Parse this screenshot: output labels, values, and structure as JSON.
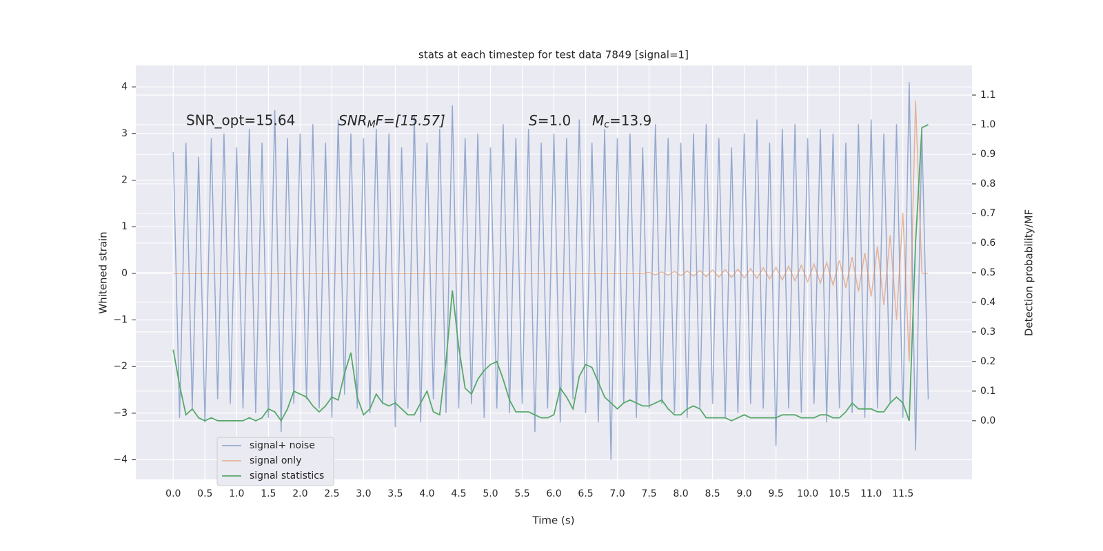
{
  "chart_data": {
    "type": "line",
    "title": "stats at each timestep for test data 7849 [signal=1]",
    "x_label": "Time (s)",
    "y_label": "Whitened strain",
    "y2_label": "Detection probability/MF",
    "annotations": {
      "snr_opt": "SNR_opt=15.64",
      "snr_mf": [
        "SNR",
        "M",
        "F=[15.57]"
      ],
      "s": [
        "S",
        "=1.0"
      ],
      "mc": [
        "M",
        "c",
        "=13.9"
      ]
    },
    "xlim": [
      -0.59,
      12.59
    ],
    "ylim": [
      -4.42,
      4.46
    ],
    "y2lim": [
      -0.198,
      1.2
    ],
    "xticks": [
      {
        "value": 0,
        "label": "0.0"
      },
      0.5,
      {
        "value": 1,
        "label": "1.0"
      },
      1.5,
      {
        "value": 2,
        "label": "2.0"
      },
      2.5,
      {
        "value": 3,
        "label": "3.0"
      },
      3.5,
      {
        "value": 4,
        "label": "4.0"
      },
      4.5,
      {
        "value": 5,
        "label": "5.0"
      },
      5.5,
      {
        "value": 6,
        "label": "6.0"
      },
      6.5,
      {
        "value": 7,
        "label": "7.0"
      },
      7.5,
      {
        "value": 8,
        "label": "8.0"
      },
      8.5,
      {
        "value": 9,
        "label": "9.0"
      },
      9.5,
      {
        "value": 10,
        "label": "10.0"
      },
      10.5,
      {
        "value": 11,
        "label": "11.0"
      },
      11.5
    ],
    "yticks": [
      {
        "value": -4,
        "label": "−4"
      },
      {
        "value": -3,
        "label": "−3"
      },
      {
        "value": -2,
        "label": "−2"
      },
      {
        "value": -1,
        "label": "−1"
      },
      0,
      1,
      2,
      3,
      4
    ],
    "y2ticks": [
      {
        "value": 0,
        "label": "0.0"
      },
      0.1,
      0.2,
      0.3,
      0.4,
      0.5,
      0.6,
      0.7,
      0.8,
      0.9,
      {
        "value": 1,
        "label": "1.0"
      },
      1.1
    ],
    "grid": true,
    "legend": "lower left",
    "x": [
      0,
      0.1,
      0.2,
      0.3,
      0.4,
      0.5,
      0.6,
      0.7,
      0.8,
      0.9,
      1,
      1.1,
      1.2,
      1.3,
      1.4,
      1.5,
      1.6,
      1.7,
      1.8,
      1.9,
      2,
      2.1,
      2.2,
      2.3,
      2.4,
      2.5,
      2.6,
      2.7,
      2.8,
      2.9,
      3,
      3.1,
      3.2,
      3.3,
      3.4,
      3.5,
      3.6,
      3.7,
      3.8,
      3.9,
      4,
      4.1,
      4.2,
      4.3,
      4.4,
      4.5,
      4.6,
      4.7,
      4.8,
      4.9,
      5,
      5.1,
      5.2,
      5.3,
      5.4,
      5.5,
      5.6,
      5.7,
      5.8,
      5.9,
      6,
      6.1,
      6.2,
      6.3,
      6.4,
      6.5,
      6.6,
      6.7,
      6.8,
      6.9,
      7,
      7.1,
      7.2,
      7.3,
      7.4,
      7.5,
      7.6,
      7.7,
      7.8,
      7.9,
      8,
      8.1,
      8.2,
      8.3,
      8.4,
      8.5,
      8.6,
      8.7,
      8.8,
      8.9,
      9,
      9.1,
      9.2,
      9.3,
      9.4,
      9.5,
      9.6,
      9.7,
      9.8,
      9.9,
      10,
      10.1,
      10.2,
      10.3,
      10.4,
      10.5,
      10.6,
      10.7,
      10.8,
      10.9,
      11,
      11.1,
      11.2,
      11.3,
      11.4,
      11.5,
      11.6,
      11.7,
      11.8,
      11.9
    ],
    "series": [
      {
        "name": "signal+ noise",
        "color": "#4c72b0",
        "values": [
          2.6,
          -3.1,
          2.8,
          -2.9,
          2.5,
          -3.2,
          2.9,
          -2.7,
          3.0,
          -2.8,
          2.7,
          -2.9,
          3.1,
          -3.0,
          2.8,
          -3.1,
          3.5,
          -3.4,
          2.9,
          -2.8,
          3.0,
          -2.7,
          3.2,
          -2.9,
          2.8,
          -3.1,
          3.3,
          -2.6,
          3.0,
          -2.9,
          2.9,
          -3.0,
          3.1,
          -2.8,
          3.0,
          -3.3,
          2.7,
          -2.9,
          3.4,
          -3.2,
          2.8,
          -2.7,
          3.1,
          -3.0,
          3.6,
          -2.9,
          2.9,
          -2.8,
          3.0,
          -3.1,
          2.7,
          -2.9,
          3.2,
          -3.0,
          2.9,
          -2.8,
          3.1,
          -3.4,
          2.8,
          -2.9,
          3.0,
          -3.2,
          2.9,
          -2.7,
          3.3,
          -3.0,
          2.8,
          -3.2,
          3.1,
          -4.0,
          2.9,
          -2.8,
          3.0,
          -3.1,
          2.7,
          -2.9,
          3.2,
          -2.8,
          2.9,
          -3.0,
          2.8,
          -3.1,
          3.0,
          -2.9,
          3.2,
          -2.8,
          2.9,
          -3.1,
          2.7,
          -3.0,
          3.0,
          -2.8,
          3.3,
          -2.9,
          2.8,
          -3.7,
          3.1,
          -2.9,
          3.2,
          -3.0,
          2.9,
          -2.8,
          3.1,
          -3.2,
          3.0,
          -2.9,
          2.8,
          -3.0,
          3.2,
          -3.1,
          3.3,
          -2.9,
          3.0,
          -2.8,
          3.2,
          -3.1,
          4.1,
          -3.8,
          3.0,
          -2.7
        ]
      },
      {
        "name": "signal only",
        "color": "#dd8452",
        "values": [
          0,
          0,
          0,
          0,
          0,
          0,
          0,
          0,
          0,
          0,
          0,
          0,
          0,
          0,
          0,
          0,
          0,
          0,
          0,
          0,
          0,
          0,
          0,
          0,
          0,
          0,
          0,
          0,
          0,
          0,
          0,
          0,
          0,
          0,
          0,
          0,
          0,
          0,
          0,
          0,
          0,
          0,
          0,
          0,
          0,
          0,
          0,
          0,
          0,
          0,
          0,
          0,
          0,
          0,
          0,
          0,
          0,
          0,
          0,
          0,
          0,
          0,
          0,
          0,
          0,
          0,
          0,
          0,
          0,
          0,
          0,
          0,
          0,
          0,
          0,
          0.02,
          -0.03,
          0.03,
          -0.04,
          0.04,
          -0.05,
          0.05,
          -0.06,
          0.06,
          -0.07,
          0.07,
          -0.08,
          0.08,
          -0.09,
          0.09,
          -0.1,
          0.1,
          -0.11,
          0.12,
          -0.12,
          0.13,
          -0.14,
          0.15,
          -0.16,
          0.17,
          -0.18,
          0.2,
          -0.21,
          0.23,
          -0.25,
          0.28,
          -0.31,
          0.35,
          -0.39,
          0.44,
          -0.5,
          0.58,
          -0.68,
          0.82,
          -1.0,
          1.3,
          -1.9,
          3.7,
          0,
          0
        ]
      },
      {
        "name": "signal statistics",
        "color": "#55a868",
        "axis": "y2",
        "values": [
          0.24,
          0.12,
          0.02,
          0.04,
          0.01,
          0.0,
          0.01,
          0.0,
          0.0,
          0.0,
          0.0,
          0.0,
          0.01,
          0.0,
          0.01,
          0.04,
          0.03,
          0.0,
          0.04,
          0.1,
          0.09,
          0.08,
          0.05,
          0.03,
          0.05,
          0.08,
          0.07,
          0.16,
          0.23,
          0.08,
          0.02,
          0.04,
          0.09,
          0.06,
          0.05,
          0.06,
          0.04,
          0.02,
          0.02,
          0.06,
          0.1,
          0.03,
          0.02,
          0.2,
          0.44,
          0.25,
          0.11,
          0.09,
          0.14,
          0.17,
          0.19,
          0.2,
          0.14,
          0.07,
          0.03,
          0.03,
          0.03,
          0.02,
          0.01,
          0.01,
          0.02,
          0.11,
          0.08,
          0.04,
          0.15,
          0.19,
          0.18,
          0.13,
          0.08,
          0.06,
          0.04,
          0.06,
          0.07,
          0.06,
          0.05,
          0.05,
          0.06,
          0.07,
          0.04,
          0.02,
          0.02,
          0.04,
          0.05,
          0.04,
          0.01,
          0.01,
          0.01,
          0.01,
          0.0,
          0.01,
          0.02,
          0.01,
          0.01,
          0.01,
          0.01,
          0.01,
          0.02,
          0.02,
          0.02,
          0.01,
          0.01,
          0.01,
          0.02,
          0.02,
          0.01,
          0.01,
          0.03,
          0.06,
          0.04,
          0.04,
          0.04,
          0.03,
          0.03,
          0.06,
          0.08,
          0.06,
          0.0,
          0.6,
          0.99,
          1.0
        ]
      }
    ]
  }
}
